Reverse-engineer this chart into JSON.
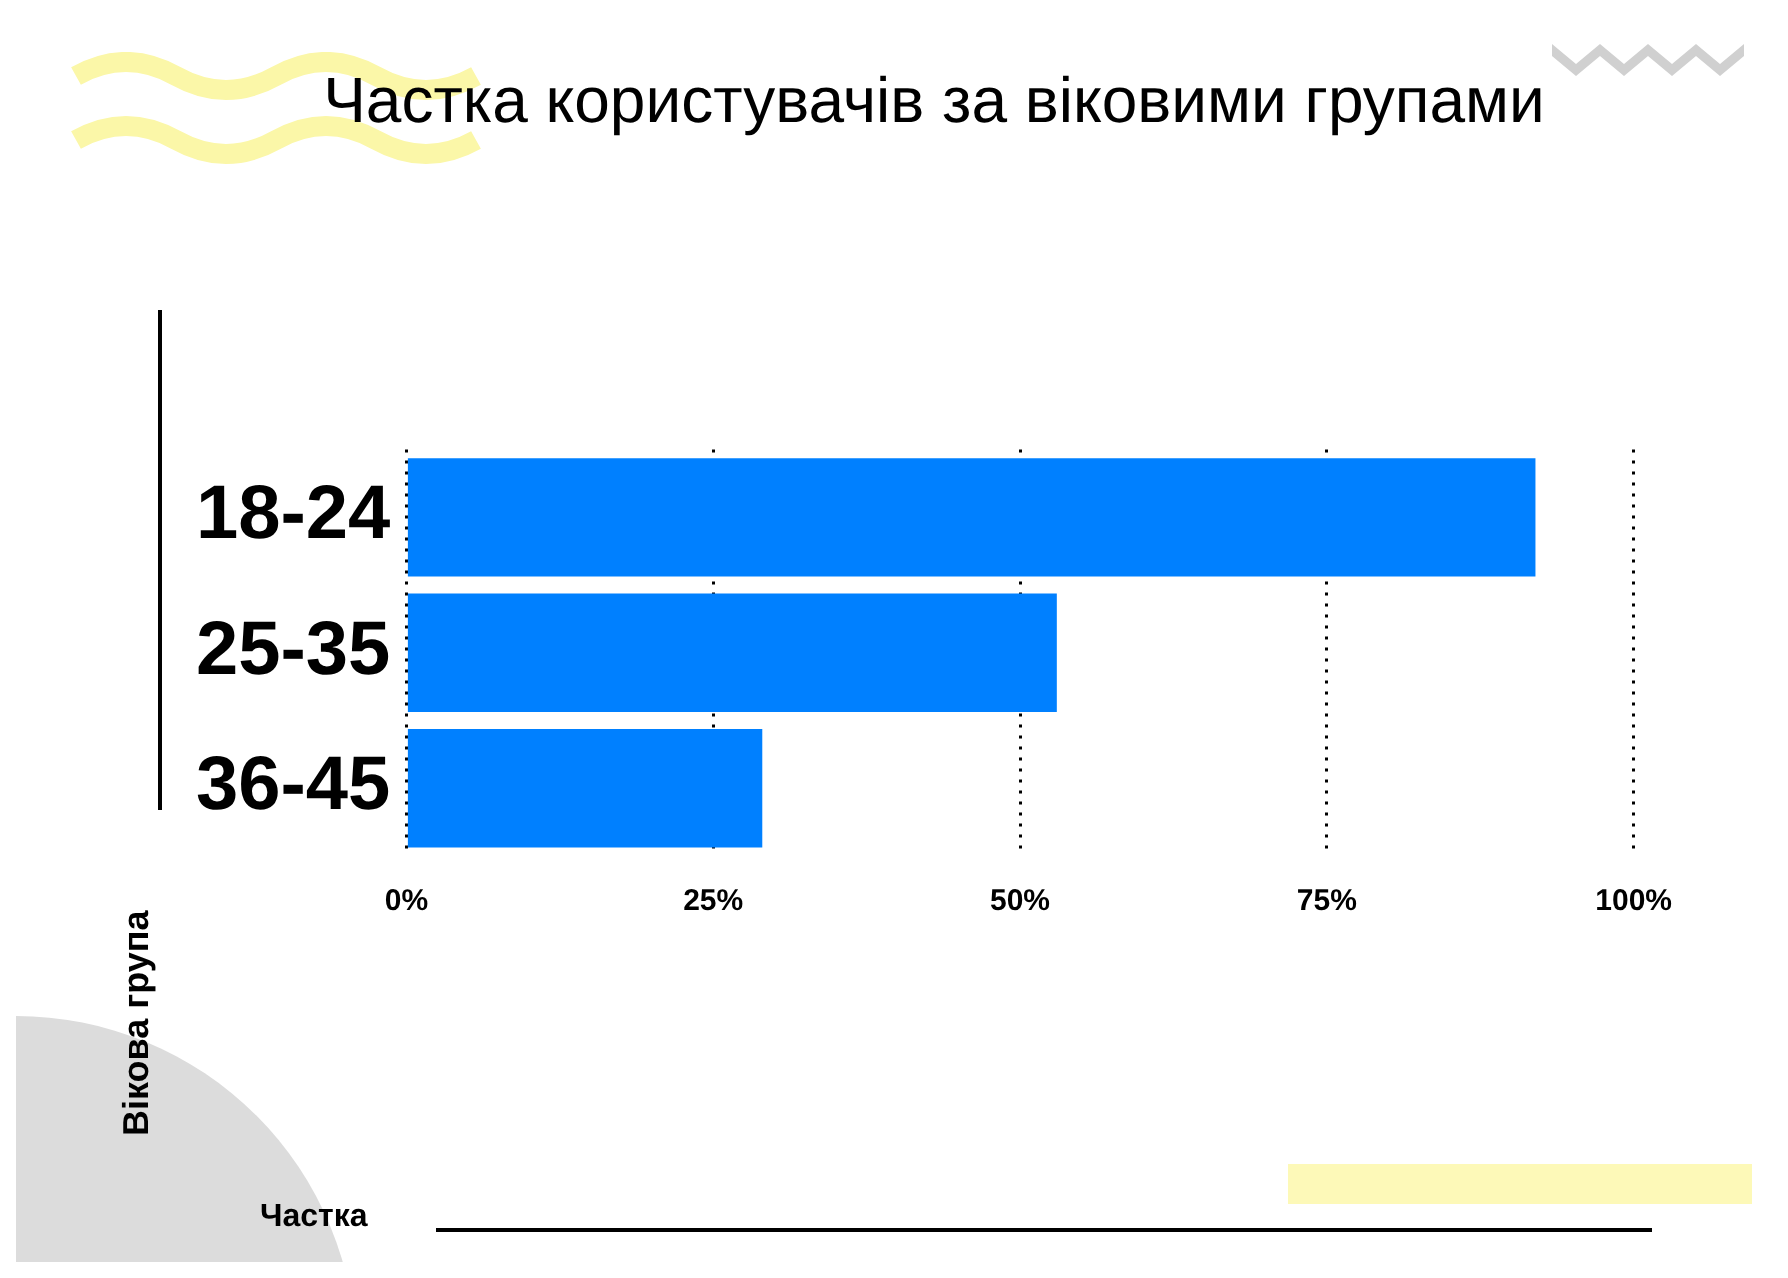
{
  "chart_data": {
    "type": "bar",
    "orientation": "horizontal",
    "title": "Частка користувачів за віковими групами",
    "annotations": [
      "Частка"
    ],
    "ylabel": "Вікова група",
    "categories": [
      "18-24",
      "25-35",
      "36-45"
    ],
    "values": [
      92,
      53,
      29
    ],
    "color": "#0080ff",
    "xlim": [
      0,
      100
    ],
    "xticks": [
      {
        "value": 0,
        "label": "0%"
      },
      {
        "value": 25,
        "label": "25%"
      },
      {
        "value": 50,
        "label": "50%"
      },
      {
        "value": 75,
        "label": "75%"
      },
      {
        "value": 100,
        "label": "100%"
      }
    ],
    "grid": "x",
    "legend": false
  }
}
